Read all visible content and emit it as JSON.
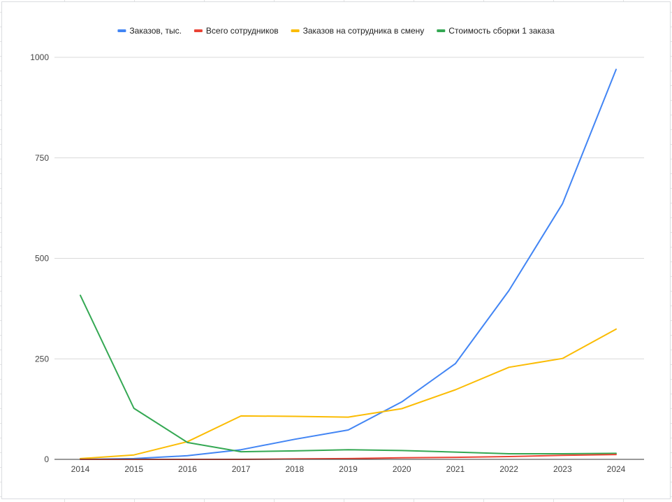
{
  "chart_data": {
    "type": "line",
    "categories": [
      "2014",
      "2015",
      "2016",
      "2017",
      "2018",
      "2019",
      "2020",
      "2021",
      "2022",
      "2023",
      "2024"
    ],
    "ylim": [
      0,
      1000
    ],
    "yticks": [
      "0",
      "250",
      "500",
      "750",
      "1000"
    ],
    "grid": true,
    "legend_position": "top",
    "series": [
      {
        "name": "Заказов, тыс.",
        "color": "#4285f4",
        "values": [
          0,
          2,
          9,
          24,
          50,
          73,
          143,
          238,
          420,
          636,
          970
        ]
      },
      {
        "name": "Всего сотрудников",
        "color": "#ea4335",
        "values": [
          0,
          0,
          0,
          0,
          1,
          2,
          4,
          5,
          7,
          10,
          12
        ]
      },
      {
        "name": "Заказов на сотрудника в смену",
        "color": "#fbbc04",
        "values": [
          2,
          11,
          44,
          108,
          107,
          105,
          126,
          173,
          229,
          251,
          324
        ]
      },
      {
        "name": "Стоимость сборки 1 заказа",
        "color": "#34a853",
        "values": [
          408,
          127,
          42,
          19,
          21,
          24,
          22,
          18,
          14,
          14,
          15
        ]
      }
    ]
  }
}
